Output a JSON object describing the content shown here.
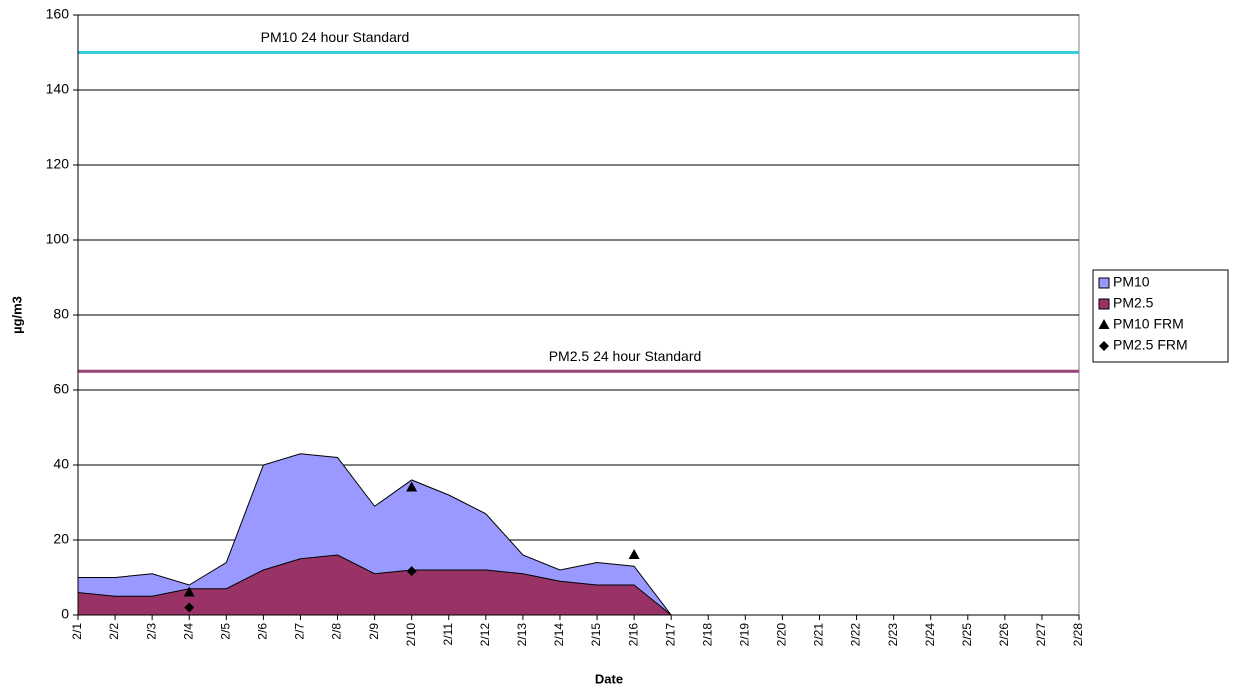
{
  "chart_data": {
    "type": "area",
    "x_label": "Date",
    "y_label": "µg/m3",
    "categories": [
      "2/1",
      "2/2",
      "2/3",
      "2/4",
      "2/5",
      "2/6",
      "2/7",
      "2/8",
      "2/9",
      "2/10",
      "2/11",
      "2/12",
      "2/13",
      "2/14",
      "2/15",
      "2/16",
      "2/17",
      "2/18",
      "2/19",
      "2/20",
      "2/21",
      "2/22",
      "2/23",
      "2/24",
      "2/25",
      "2/26",
      "2/27",
      "2/28"
    ],
    "series": [
      {
        "name": "PM10",
        "kind": "area",
        "color": "#9999ff",
        "values": [
          10,
          10,
          11,
          8,
          14,
          40,
          43,
          42,
          29,
          36,
          32,
          27,
          16,
          12,
          14,
          13,
          0,
          0,
          0,
          0,
          0,
          0,
          0,
          0,
          0,
          0,
          0,
          0
        ]
      },
      {
        "name": "PM2.5",
        "kind": "area",
        "color": "#993366",
        "values": [
          6,
          5,
          5,
          7,
          7,
          12,
          15,
          16,
          11,
          12,
          12,
          12,
          11,
          9,
          8,
          8,
          0,
          0,
          0,
          0,
          0,
          0,
          0,
          0,
          0,
          0,
          0,
          0
        ]
      },
      {
        "name": "PM10 FRM",
        "kind": "marker",
        "marker": "triangle",
        "color": "#000000",
        "values": [
          null,
          null,
          null,
          6,
          null,
          null,
          null,
          null,
          null,
          34,
          null,
          null,
          null,
          null,
          null,
          16,
          null,
          null,
          null,
          null,
          null,
          null,
          null,
          null,
          null,
          null,
          null,
          null
        ]
      },
      {
        "name": "PM2.5 FRM",
        "kind": "marker",
        "marker": "diamond",
        "color": "#000000",
        "values": [
          null,
          null,
          null,
          2,
          null,
          null,
          null,
          null,
          null,
          11.7,
          null,
          null,
          null,
          null,
          null,
          null,
          null,
          null,
          null,
          null,
          null,
          null,
          null,
          null,
          null,
          null,
          null,
          null
        ]
      }
    ],
    "reference_lines": [
      {
        "label": "PM10 24 hour Standard",
        "value": 150,
        "color": "#33ccdd"
      },
      {
        "label": "PM2.5 24 hour Standard",
        "value": 65,
        "color": "#994477"
      }
    ],
    "ylim": [
      0,
      160
    ],
    "yticks": [
      0,
      20,
      40,
      60,
      80,
      100,
      120,
      140,
      160
    ],
    "grid": true,
    "legend": "right"
  }
}
